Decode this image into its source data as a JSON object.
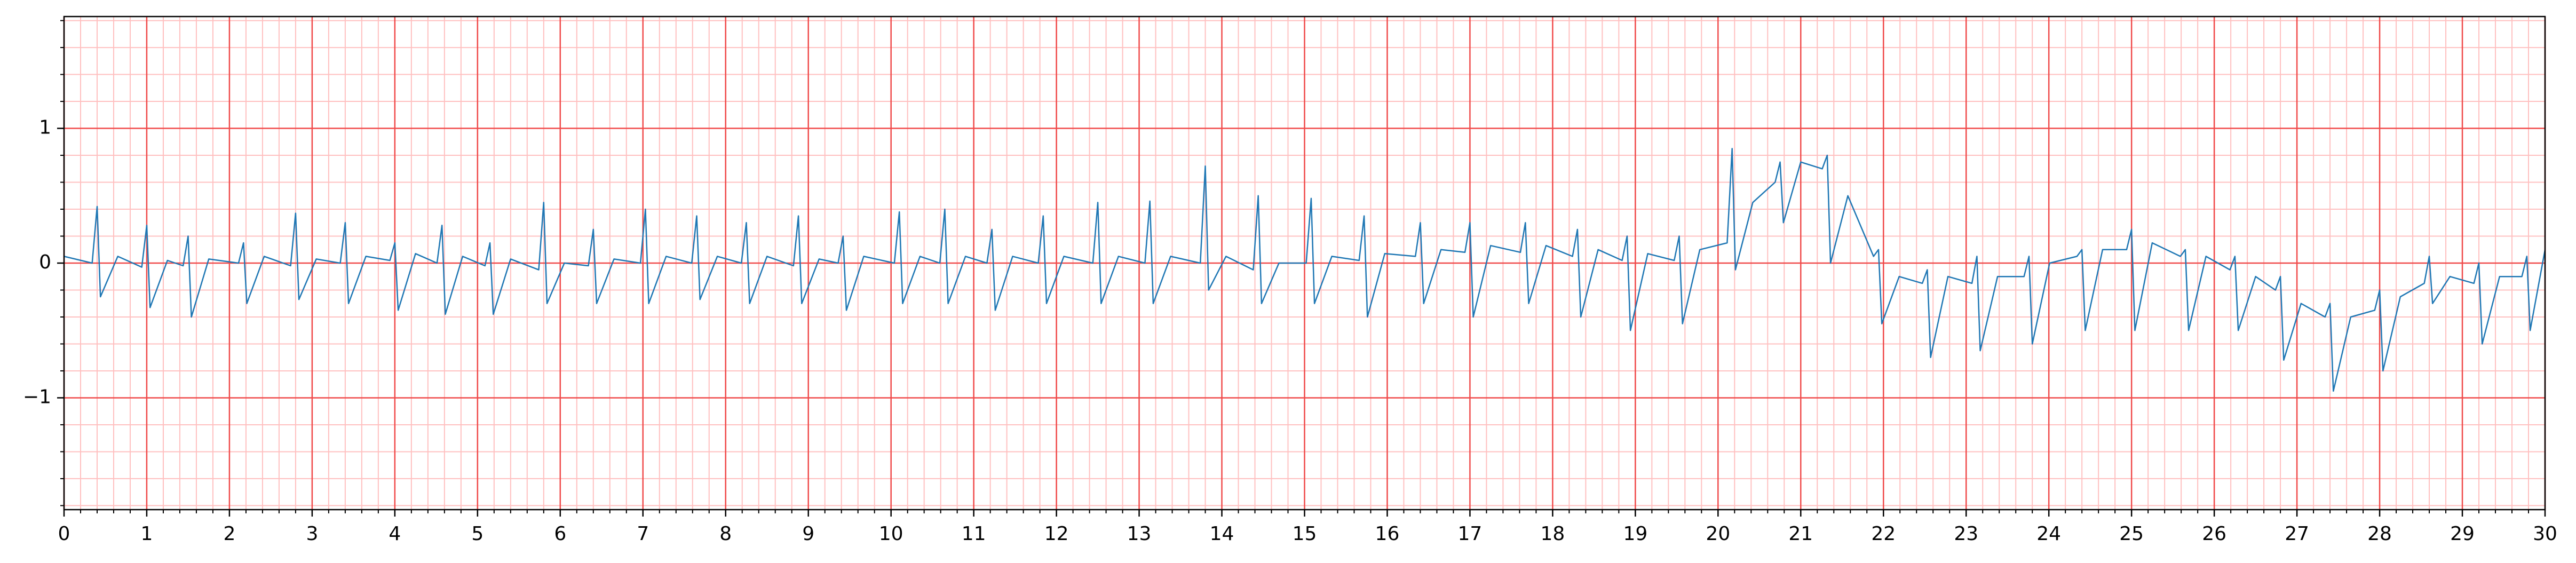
{
  "chart_data": {
    "type": "line",
    "xlim": [
      0,
      30
    ],
    "ylim": [
      -1.83,
      1.83
    ],
    "xticks": [
      0,
      1,
      2,
      3,
      4,
      5,
      6,
      7,
      8,
      9,
      10,
      11,
      12,
      13,
      14,
      15,
      16,
      17,
      18,
      19,
      20,
      21,
      22,
      23,
      24,
      25,
      26,
      27,
      28,
      29,
      30
    ],
    "yticks": [
      {
        "value": -1,
        "label": "−1"
      },
      0,
      1
    ],
    "grid": true,
    "minor_grid_step": 0.2,
    "major_grid_color": "#f04a4a",
    "minor_grid_color": "#ffc0c0",
    "x": [
      0,
      0.34,
      0.4,
      0.44,
      0.65,
      0.94,
      1.0,
      1.04,
      1.25,
      1.44,
      1.5,
      1.54,
      1.75,
      2.11,
      2.17,
      2.21,
      2.42,
      2.74,
      2.8,
      2.84,
      3.05,
      3.34,
      3.4,
      3.44,
      3.65,
      3.94,
      4.0,
      4.04,
      4.25,
      4.51,
      4.57,
      4.61,
      4.82,
      5.09,
      5.15,
      5.19,
      5.4,
      5.74,
      5.8,
      5.84,
      6.05,
      6.34,
      6.4,
      6.44,
      6.65,
      6.97,
      7.03,
      7.07,
      7.28,
      7.59,
      7.65,
      7.69,
      7.9,
      8.19,
      8.25,
      8.29,
      8.5,
      8.82,
      8.88,
      8.92,
      9.13,
      9.36,
      9.42,
      9.46,
      9.67,
      10.04,
      10.1,
      10.14,
      10.35,
      10.59,
      10.65,
      10.69,
      10.9,
      11.16,
      11.22,
      11.26,
      11.47,
      11.78,
      11.84,
      11.88,
      12.09,
      12.44,
      12.5,
      12.54,
      12.75,
      13.07,
      13.13,
      13.17,
      13.38,
      13.74,
      13.8,
      13.84,
      14.05,
      14.38,
      14.44,
      14.48,
      14.69,
      15.02,
      15.08,
      15.12,
      15.33,
      15.66,
      15.72,
      15.76,
      15.97,
      16.34,
      16.4,
      16.44,
      16.65,
      16.94,
      17,
      17.04,
      17.25,
      17.61,
      17.67,
      17.71,
      17.92,
      18.24,
      18.3,
      18.34,
      18.55,
      18.84,
      18.9,
      18.94,
      19.15,
      19.47,
      19.53,
      19.57,
      19.78,
      20.11,
      20.17,
      20.21,
      20.42,
      20.69,
      20.75,
      20.79,
      21,
      21.26,
      21.32,
      21.36,
      21.57,
      21.88,
      21.94,
      21.98,
      22.19,
      22.47,
      22.53,
      22.57,
      22.78,
      23.07,
      23.13,
      23.17,
      23.38,
      23.7,
      23.76,
      23.8,
      24.01,
      24.34,
      24.4,
      24.44,
      24.65,
      24.94,
      25,
      25.04,
      25.25,
      25.59,
      25.65,
      25.69,
      25.9,
      26.19,
      26.25,
      26.29,
      26.5,
      26.74,
      26.8,
      26.84,
      27.05,
      27.34,
      27.4,
      27.44,
      27.65,
      27.94,
      28,
      28.04,
      28.25,
      28.54,
      28.6,
      28.64,
      28.85,
      29.14,
      29.2,
      29.24,
      29.45,
      29.72,
      29.78,
      29.82,
      30
    ],
    "series": [
      {
        "color": "#1f77b4",
        "values": [
          0.05,
          0,
          0.42,
          -0.25,
          0.05,
          -0.03,
          0.28,
          -0.33,
          0.02,
          -0.02,
          0.2,
          -0.4,
          0.03,
          0,
          0.15,
          -0.3,
          0.05,
          -0.02,
          0.37,
          -0.27,
          0.03,
          0,
          0.3,
          -0.3,
          0.05,
          0.02,
          0.15,
          -0.35,
          0.07,
          0,
          0.28,
          -0.38,
          0.05,
          -0.02,
          0.15,
          -0.38,
          0.03,
          -0.05,
          0.45,
          -0.3,
          0,
          -0.02,
          0.25,
          -0.3,
          0.03,
          0,
          0.4,
          -0.3,
          0.05,
          0,
          0.35,
          -0.27,
          0.05,
          0,
          0.3,
          -0.3,
          0.05,
          -0.02,
          0.35,
          -0.3,
          0.03,
          0,
          0.2,
          -0.35,
          0.05,
          0,
          0.38,
          -0.3,
          0.05,
          0,
          0.4,
          -0.3,
          0.05,
          0,
          0.25,
          -0.35,
          0.05,
          0,
          0.35,
          -0.3,
          0.05,
          0,
          0.45,
          -0.3,
          0.05,
          0,
          0.46,
          -0.3,
          0.05,
          0,
          0.72,
          -0.2,
          0.05,
          -0.05,
          0.5,
          -0.3,
          0,
          0,
          0.48,
          -0.3,
          0.05,
          0.02,
          0.35,
          -0.4,
          0.07,
          0.05,
          0.3,
          -0.3,
          0.1,
          0.08,
          0.3,
          -0.4,
          0.13,
          0.08,
          0.3,
          -0.3,
          0.13,
          0.05,
          0.25,
          -0.4,
          0.1,
          0.02,
          0.2,
          -0.5,
          0.07,
          0.02,
          0.2,
          -0.45,
          0.1,
          0.15,
          0.85,
          -0.05,
          0.45,
          0.6,
          0.75,
          0.3,
          0.75,
          0.7,
          0.8,
          0,
          0.5,
          0.05,
          0.1,
          -0.45,
          -0.1,
          -0.15,
          -0.05,
          -0.7,
          -0.1,
          -0.15,
          0.05,
          -0.65,
          -0.1,
          -0.1,
          0.05,
          -0.6,
          0,
          0.05,
          0.1,
          -0.5,
          0.1,
          0.1,
          0.25,
          -0.5,
          0.15,
          0.05,
          0.1,
          -0.5,
          0.05,
          -0.05,
          0.05,
          -0.5,
          -0.1,
          -0.2,
          -0.1,
          -0.72,
          -0.3,
          -0.4,
          -0.3,
          -0.95,
          -0.4,
          -0.35,
          -0.2,
          -0.8,
          -0.25,
          -0.15,
          0.05,
          -0.3,
          -0.1,
          -0.15,
          0,
          -0.6,
          -0.1,
          -0.1,
          0.05,
          -0.5,
          0.1
        ]
      }
    ]
  }
}
